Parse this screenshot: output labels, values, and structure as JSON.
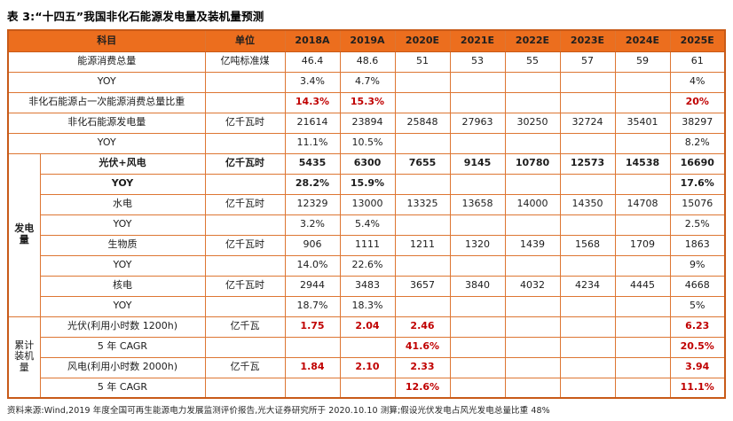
{
  "title": "表 3:“十四五”我国非化石能源发电量及装机量预测",
  "source_note": "资料来源:Wind,2019 年度全国可再生能源电力发展监测评价报告,光大证券研究所于 2020.10.10 测算;假设光伏发电占风光发电总量比重 48%",
  "colors": {
    "header_bg": "#EC6E1E",
    "grid_border": "#DD7633",
    "border_strong": "#C85A18",
    "highlight_red": "#C00000",
    "header_text": "#1F1F1F"
  },
  "table": {
    "headers": [
      "科目",
      "单位",
      "2018A",
      "2019A",
      "2020E",
      "2021E",
      "2022E",
      "2023E",
      "2024E",
      "2025E"
    ],
    "rows": [
      {
        "label": "能源消费总量",
        "unit": "亿吨标准煤",
        "span_group": true,
        "values": [
          "46.4",
          "48.6",
          "51",
          "53",
          "55",
          "57",
          "59",
          "61"
        ]
      },
      {
        "label": "YOY",
        "unit": "",
        "span_group": true,
        "values": [
          "3.4%",
          "4.7%",
          "",
          "",
          "",
          "",
          "",
          "4%"
        ]
      },
      {
        "label": "非化石能源占一次能源消费总量比重",
        "unit": "",
        "span_group": true,
        "red": true,
        "values": [
          "14.3%",
          "15.3%",
          "",
          "",
          "",
          "",
          "",
          "20%"
        ]
      },
      {
        "label": "非化石能源发电量",
        "unit": "亿千瓦时",
        "span_group": true,
        "values": [
          "21614",
          "23894",
          "25848",
          "27963",
          "30250",
          "32724",
          "35401",
          "38297"
        ]
      },
      {
        "label": "YOY",
        "unit": "",
        "span_group": true,
        "values": [
          "11.1%",
          "10.5%",
          "",
          "",
          "",
          "",
          "",
          "8.2%"
        ]
      },
      {
        "group": "发电量",
        "group_rowspan": 8,
        "section_start": true,
        "bold": true,
        "label": "光伏+风电",
        "unit": "亿千瓦时",
        "values": [
          "5435",
          "6300",
          "7655",
          "9145",
          "10780",
          "12573",
          "14538",
          "16690"
        ]
      },
      {
        "bold": true,
        "label": "YOY",
        "unit": "",
        "values": [
          "28.2%",
          "15.9%",
          "",
          "",
          "",
          "",
          "",
          "17.6%"
        ]
      },
      {
        "label": "水电",
        "unit": "亿千瓦时",
        "values": [
          "12329",
          "13000",
          "13325",
          "13658",
          "14000",
          "14350",
          "14708",
          "15076"
        ]
      },
      {
        "label": "YOY",
        "unit": "",
        "values": [
          "3.2%",
          "5.4%",
          "",
          "",
          "",
          "",
          "",
          "2.5%"
        ]
      },
      {
        "label": "生物质",
        "unit": "亿千瓦时",
        "values": [
          "906",
          "1111",
          "1211",
          "1320",
          "1439",
          "1568",
          "1709",
          "1863"
        ]
      },
      {
        "label": "YOY",
        "unit": "",
        "values": [
          "14.0%",
          "22.6%",
          "",
          "",
          "",
          "",
          "",
          "9%"
        ]
      },
      {
        "label": "核电",
        "unit": "亿千瓦时",
        "values": [
          "2944",
          "3483",
          "3657",
          "3840",
          "4032",
          "4234",
          "4445",
          "4668"
        ]
      },
      {
        "label": "YOY",
        "unit": "",
        "values": [
          "18.7%",
          "18.3%",
          "",
          "",
          "",
          "",
          "",
          "5%"
        ]
      },
      {
        "group": "累计\n装机量",
        "group_rowspan": 4,
        "section_start": true,
        "red": true,
        "label": "光伏(利用小时数 1200h)",
        "unit": "亿千瓦",
        "values": [
          "1.75",
          "2.04",
          "2.46",
          "",
          "",
          "",
          "",
          "6.23"
        ]
      },
      {
        "red": true,
        "label": "5 年 CAGR",
        "unit": "",
        "values": [
          "",
          "",
          "41.6%",
          "",
          "",
          "",
          "",
          "20.5%"
        ]
      },
      {
        "red": true,
        "label": "风电(利用小时数 2000h)",
        "unit": "亿千瓦",
        "values": [
          "1.84",
          "2.10",
          "2.33",
          "",
          "",
          "",
          "",
          "3.94"
        ]
      },
      {
        "red": true,
        "label": "5 年 CAGR",
        "unit": "",
        "values": [
          "",
          "",
          "12.6%",
          "",
          "",
          "",
          "",
          "11.1%"
        ]
      }
    ]
  }
}
